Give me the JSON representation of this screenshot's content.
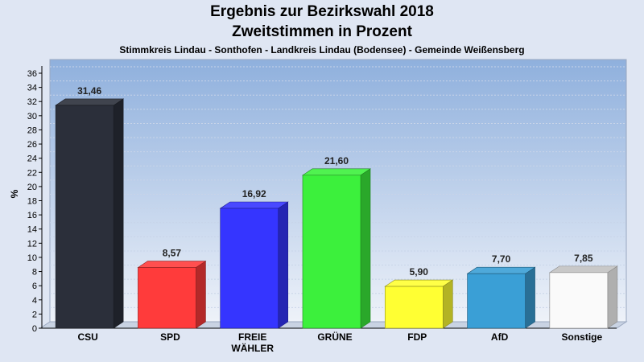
{
  "header": {
    "title_line1": "Ergebnis zur Bezirkswahl 2018",
    "title_line2": "Zweitstimmen in Prozent",
    "subtitle": "Stimmkreis Lindau - Sonthofen - Landkreis Lindau (Bodensee) - Gemeinde Weißensberg"
  },
  "chart_data": {
    "type": "bar",
    "ylabel": "%",
    "ylim": [
      0,
      36
    ],
    "ytick_step": 2,
    "grid": true,
    "categories": [
      [
        "CSU"
      ],
      [
        "SPD"
      ],
      [
        "FREIE",
        "WÄHLER"
      ],
      [
        "GRÜNE"
      ],
      [
        "FDP"
      ],
      [
        "AfD"
      ],
      [
        "Sonstige"
      ]
    ],
    "values": [
      31.46,
      8.57,
      16.92,
      21.6,
      5.9,
      7.7,
      7.85
    ],
    "value_labels": [
      "31,46",
      "8,57",
      "16,92",
      "21,60",
      "5,90",
      "7,70",
      "7,85"
    ],
    "colors": [
      "#2b2f3a",
      "#ff3b3b",
      "#3535ff",
      "#3cf03c",
      "#ffff33",
      "#3a9fd6",
      "#fafafa"
    ]
  }
}
